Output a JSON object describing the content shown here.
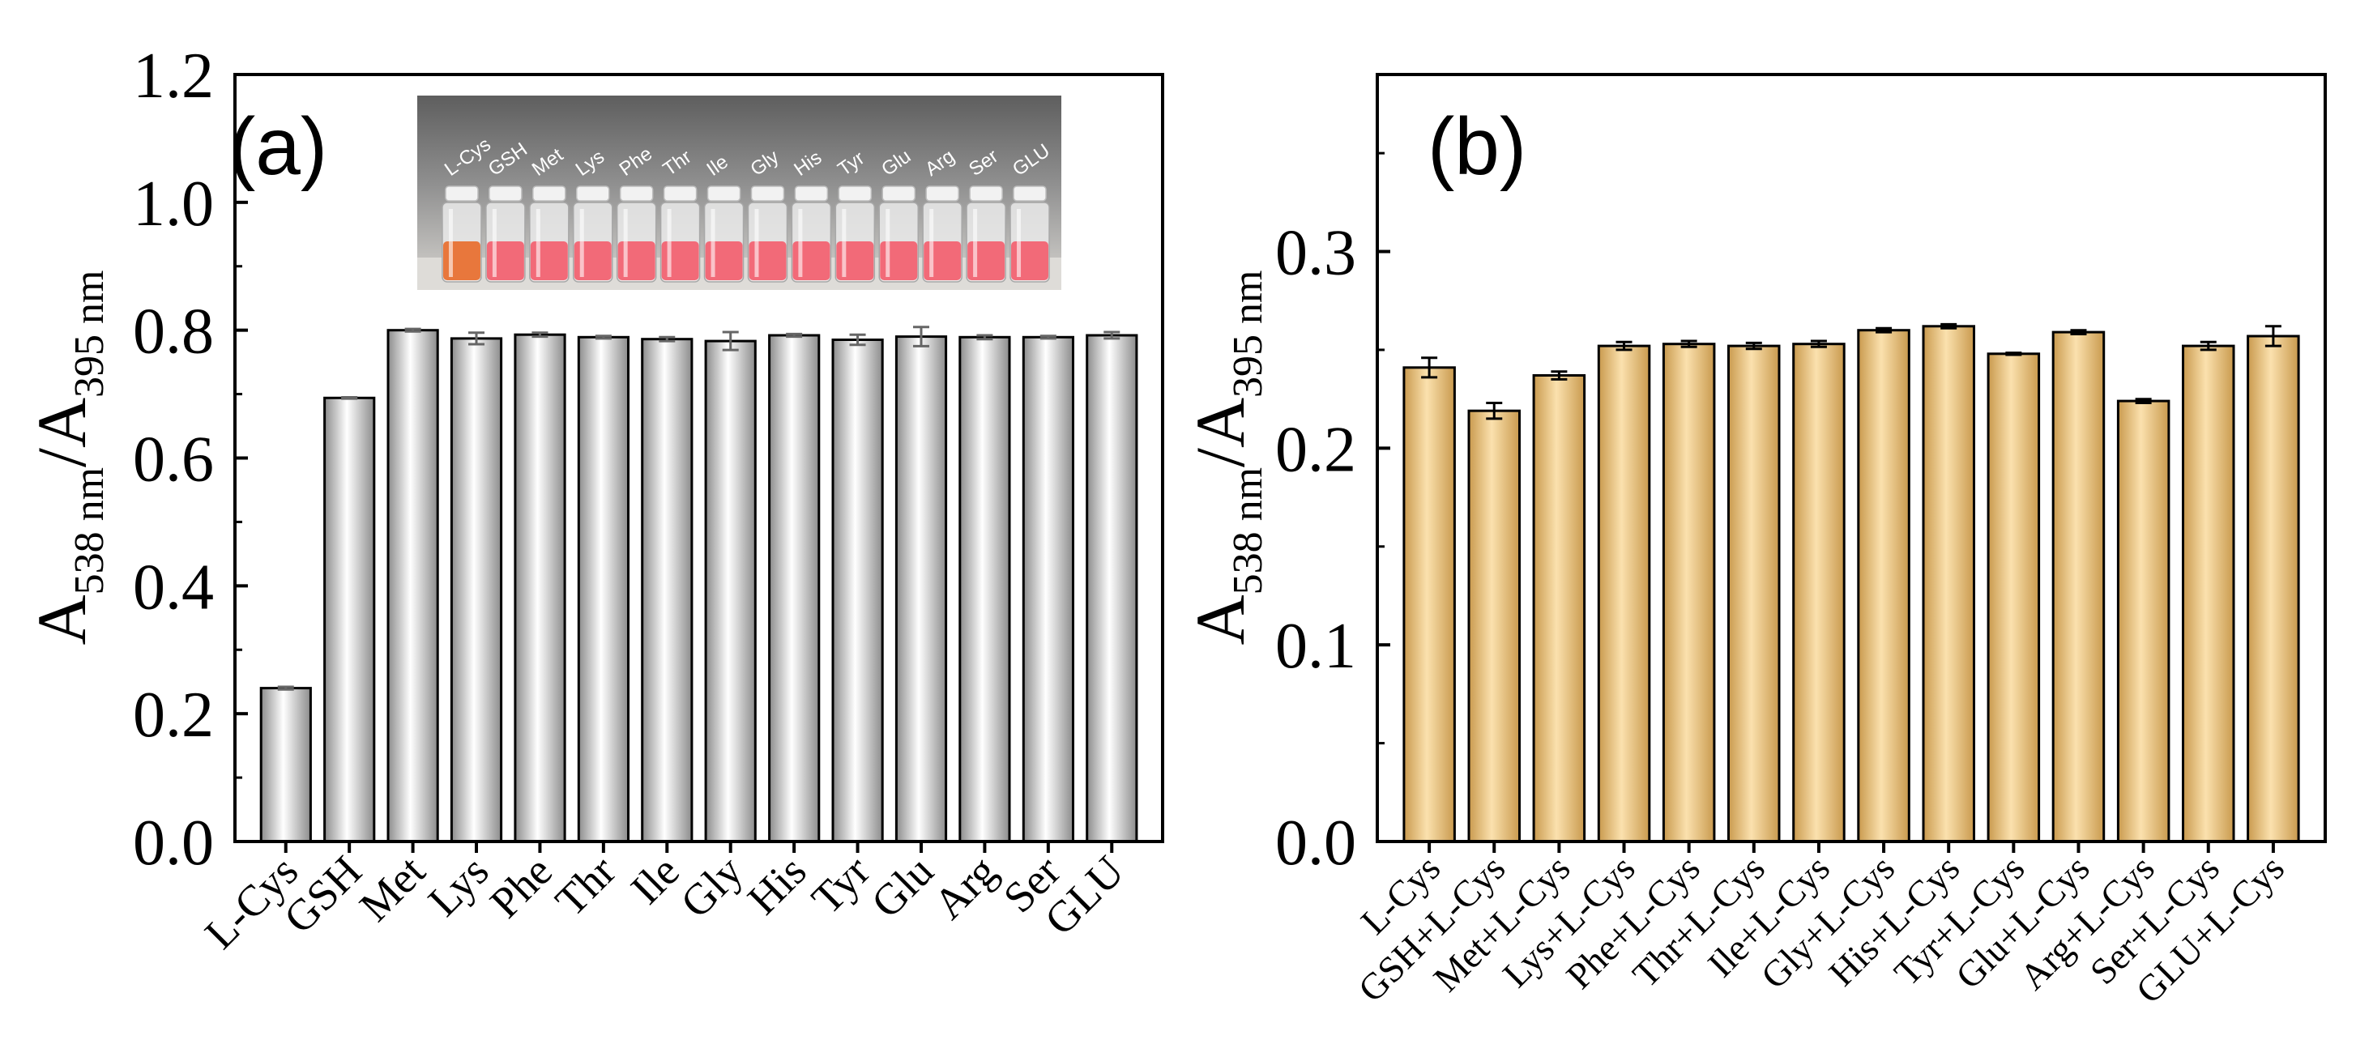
{
  "chart_data": [
    {
      "panel_label": "(a)",
      "type": "bar",
      "categories": [
        "L-Cys",
        "GSH",
        "Met",
        "Lys",
        "Phe",
        "Thr",
        "Ile",
        "Gly",
        "His",
        "Tyr",
        "Glu",
        "Arg",
        "Ser",
        "GLU"
      ],
      "values": [
        0.24,
        0.694,
        0.8,
        0.787,
        0.793,
        0.789,
        0.786,
        0.783,
        0.792,
        0.785,
        0.79,
        0.789,
        0.789,
        0.792
      ],
      "errors": [
        0.002,
        0.001,
        0.002,
        0.009,
        0.003,
        0.002,
        0.003,
        0.014,
        0.002,
        0.008,
        0.015,
        0.003,
        0.002,
        0.005
      ],
      "ylim": [
        0.0,
        1.2
      ],
      "yticks": [
        "0.0",
        "0.2",
        "0.4",
        "0.6",
        "0.8",
        "1.0",
        "1.2"
      ],
      "ylabel": {
        "main": "A",
        "sub1": "538 nm",
        "slash": "/A",
        "sub2": "395 nm"
      },
      "bar_fill": "gradient-white-gray",
      "inset": {
        "vial_labels": [
          "L-Cys",
          "GSH",
          "Met",
          "Lys",
          "Phe",
          "Thr",
          "Ile",
          "Gly",
          "His",
          "Tyr",
          "Glu",
          "Arg",
          "Ser",
          "GLU"
        ],
        "vial_colors": [
          "#e8773c",
          "#f26a78",
          "#f26a78",
          "#f26a78",
          "#f26a78",
          "#f26a78",
          "#f26a78",
          "#f26a78",
          "#f26a78",
          "#f26a78",
          "#f26a78",
          "#f26a78",
          "#f26a78",
          "#f26a78"
        ]
      }
    },
    {
      "panel_label": "(b)",
      "type": "bar",
      "categories": [
        "L-Cys",
        "GSH+L-Cys",
        "Met+L-Cys",
        "Lys+L-Cys",
        "Phe+L-Cys",
        "Thr+L-Cys",
        "Ile+L-Cys",
        "Gly+L-Cys",
        "His+L-Cys",
        "Tyr+L-Cys",
        "Glu+L-Cys",
        "Arg+L-Cys",
        "Ser+L-Cys",
        "GLU+L-Cys"
      ],
      "values": [
        0.241,
        0.219,
        0.237,
        0.252,
        0.253,
        0.252,
        0.253,
        0.26,
        0.262,
        0.248,
        0.259,
        0.224,
        0.252,
        0.257
      ],
      "errors": [
        0.005,
        0.004,
        0.002,
        0.002,
        0.0015,
        0.0015,
        0.0015,
        0.001,
        0.001,
        0.0005,
        0.001,
        0.001,
        0.002,
        0.005
      ],
      "ylim": [
        0.0,
        0.39
      ],
      "yticks": [
        "0.0",
        "0.1",
        "0.2",
        "0.3"
      ],
      "ylabel": {
        "main": "A",
        "sub1": "538 nm",
        "slash": "/A",
        "sub2": "395 nm"
      },
      "bar_fill": "gradient-tan"
    }
  ]
}
